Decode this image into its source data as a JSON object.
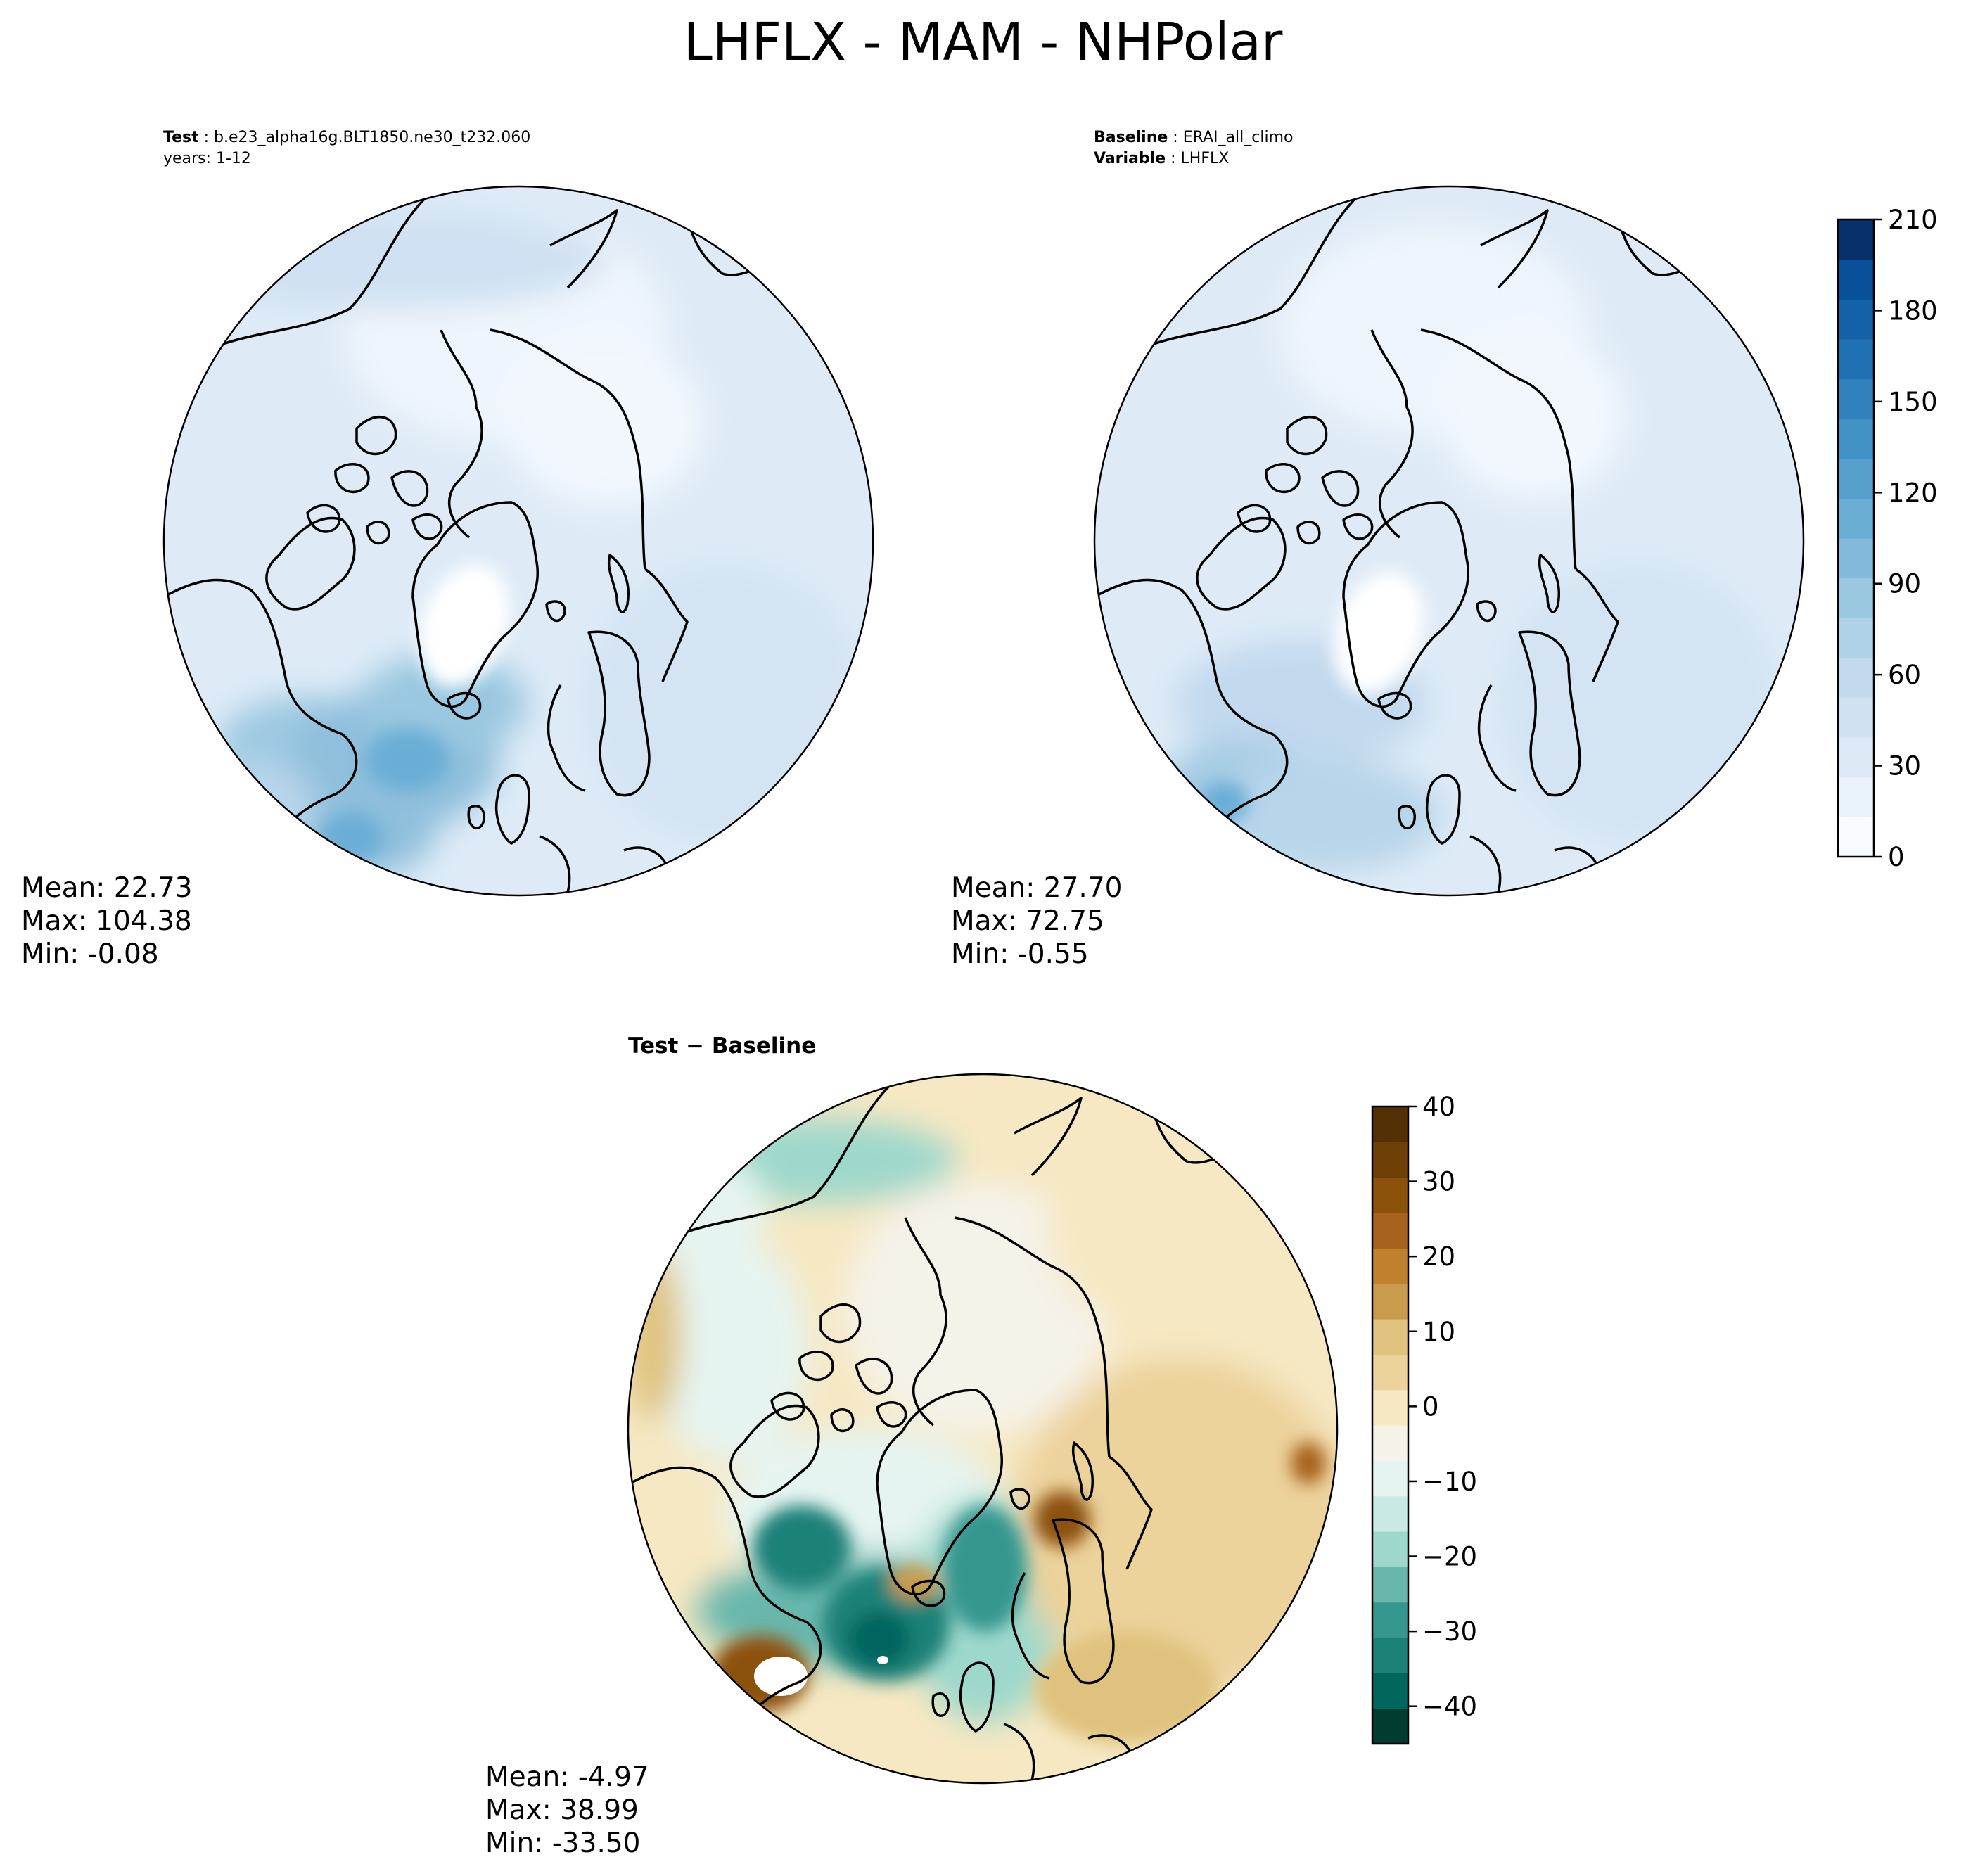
{
  "figure": {
    "title": "LHFLX - MAM - NHPolar"
  },
  "panels": [
    {
      "id": "test",
      "header_line1_key": "Test",
      "header_line1_value": "b.e23_alpha16g.BLT1850.ne30_t232.060",
      "header_line2": "years: 1-12",
      "stats": {
        "mean": "Mean: 22.73",
        "max": "Max: 104.38",
        "min": "Min: -0.08"
      }
    },
    {
      "id": "baseline",
      "header_line1_key": "Baseline",
      "header_line1_value": "ERAI_all_climo",
      "header_line2_key": "Variable",
      "header_line2_value": "LHFLX",
      "stats": {
        "mean": "Mean: 27.70",
        "max": "Max: 72.75",
        "min": "Min: -0.55"
      }
    },
    {
      "id": "difference",
      "title": "Test − Baseline",
      "stats": {
        "mean": "Mean: -4.97",
        "max": "Max: 38.99",
        "min": "Min: -33.50"
      }
    }
  ],
  "colorbars": {
    "blues": {
      "ticks": [
        "0",
        "30",
        "60",
        "90",
        "120",
        "150",
        "180",
        "210"
      ],
      "range": [
        0,
        210
      ],
      "colors": [
        "#f7fbff",
        "#e9f2fb",
        "#dde9f7",
        "#d0e1f2",
        "#c2d9ee",
        "#b0d2e8",
        "#9ac8e1",
        "#82badb",
        "#6aaed6",
        "#57a0ce",
        "#4292c6",
        "#3181bd",
        "#2070b4",
        "#1461a8",
        "#09509a",
        "#08306b"
      ]
    },
    "diverging": {
      "ticks": [
        "40",
        "30",
        "20",
        "10",
        "0",
        "−10",
        "−20",
        "−30",
        "−40"
      ],
      "range": [
        -45,
        40
      ],
      "colors": [
        "#003c30",
        "#01665e",
        "#1c8178",
        "#35978f",
        "#67b7ad",
        "#9ed8cc",
        "#c7eae5",
        "#e6f4f1",
        "#f5f2e8",
        "#f6e8c3",
        "#ecd29b",
        "#dfc27d",
        "#c99b4c",
        "#bf812d",
        "#a7621d",
        "#8c510a",
        "#6e3f07",
        "#543005"
      ]
    }
  }
}
